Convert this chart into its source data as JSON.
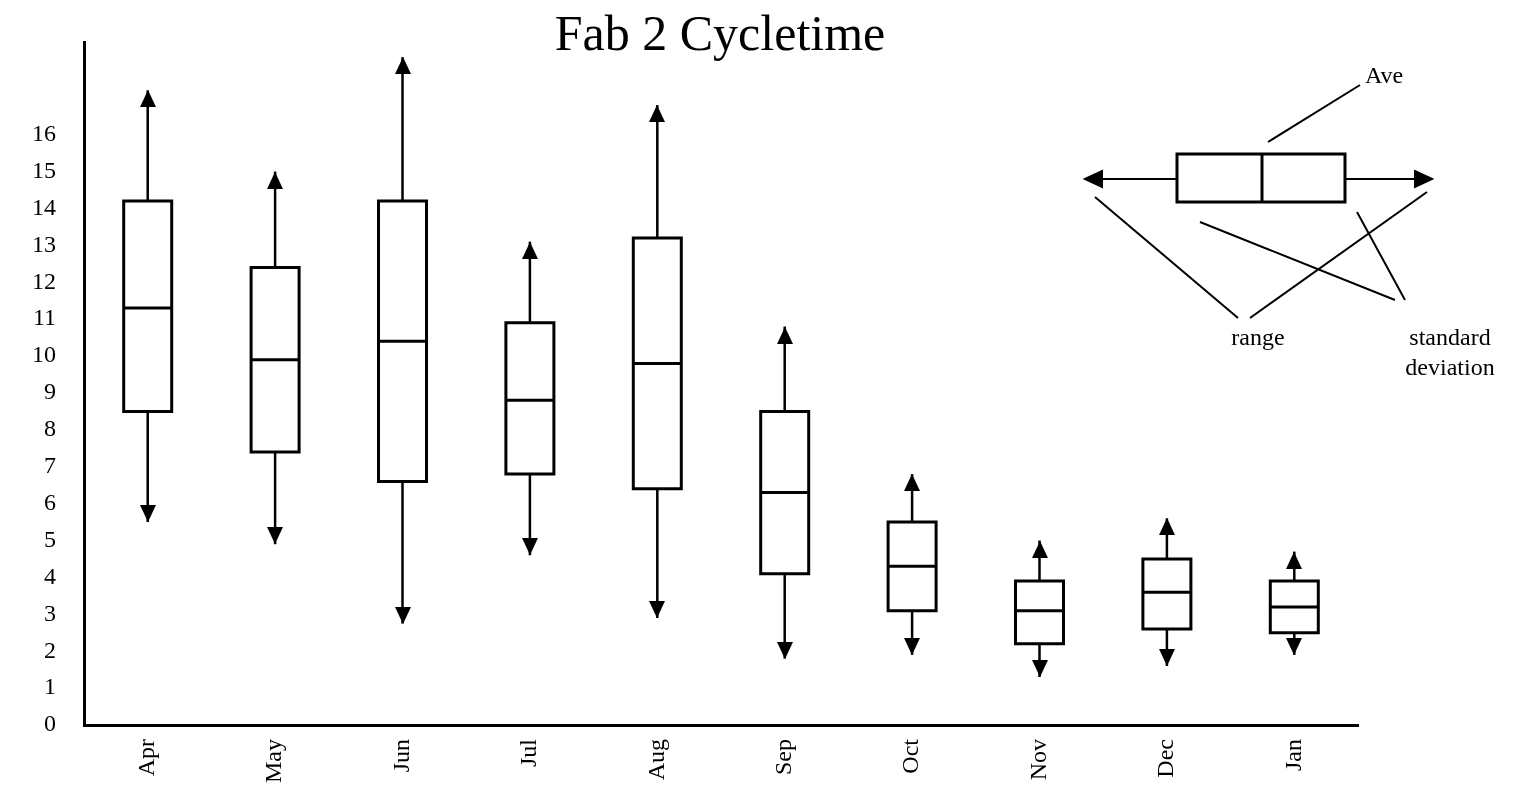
{
  "chart_data": {
    "type": "box",
    "title": "Fab 2 Cycletime",
    "categories": [
      "Apr",
      "May",
      "Jun",
      "Jul",
      "Aug",
      "Sep",
      "Oct",
      "Nov",
      "Dec",
      "Jan"
    ],
    "boxes": [
      {
        "low": 5.5,
        "q1": 8.5,
        "median": 11.3,
        "q3": 14.2,
        "high": 17.2
      },
      {
        "low": 4.9,
        "q1": 7.4,
        "median": 9.9,
        "q3": 12.4,
        "high": 15.0
      },
      {
        "low": 2.75,
        "q1": 6.6,
        "median": 10.4,
        "q3": 14.2,
        "high": 18.1
      },
      {
        "low": 4.6,
        "q1": 6.8,
        "median": 8.8,
        "q3": 10.9,
        "high": 13.1
      },
      {
        "low": 2.9,
        "q1": 6.4,
        "median": 9.8,
        "q3": 13.2,
        "high": 16.8
      },
      {
        "low": 1.8,
        "q1": 4.1,
        "median": 6.3,
        "q3": 8.5,
        "high": 10.8
      },
      {
        "low": 1.9,
        "q1": 3.1,
        "median": 4.3,
        "q3": 5.5,
        "high": 6.8
      },
      {
        "low": 1.3,
        "q1": 2.2,
        "median": 3.1,
        "q3": 3.9,
        "high": 5.0
      },
      {
        "low": 1.6,
        "q1": 2.6,
        "median": 3.6,
        "q3": 4.5,
        "high": 5.6
      },
      {
        "low": 1.9,
        "q1": 2.5,
        "median": 3.2,
        "q3": 3.9,
        "high": 4.7
      }
    ],
    "color": "#000000",
    "ylim": [
      0,
      18.5
    ],
    "yticks": [
      0,
      1,
      2,
      3,
      4,
      5,
      6,
      7,
      8,
      9,
      10,
      11,
      12,
      13,
      14,
      15,
      16
    ],
    "grid": false,
    "legend": false,
    "annotations": [
      "Ave",
      "range",
      "standard deviation"
    ]
  }
}
